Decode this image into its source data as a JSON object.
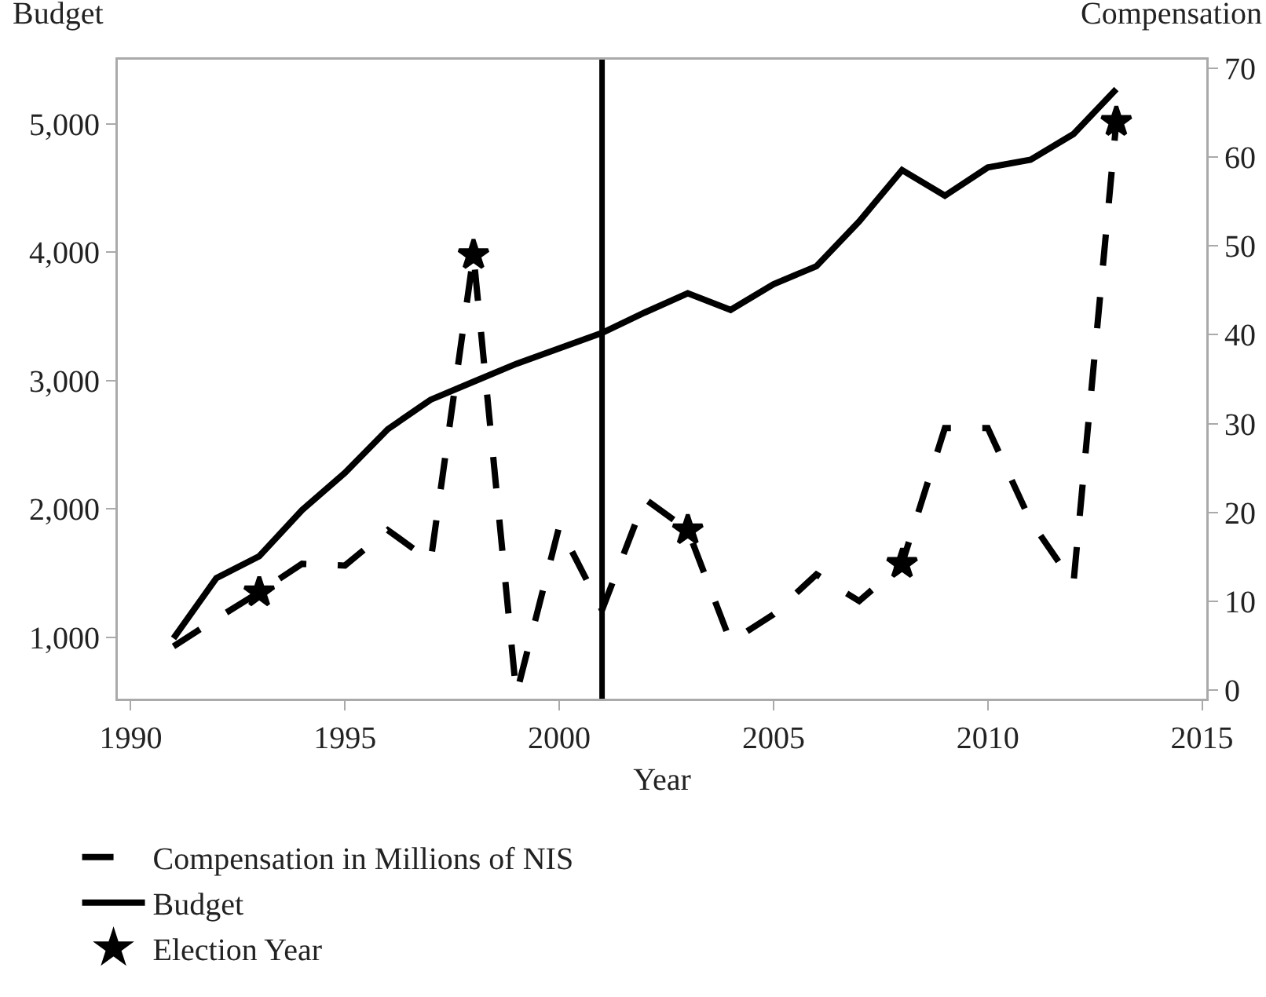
{
  "chart_data": {
    "type": "line",
    "xlabel": "Year",
    "ylabel": "Budget",
    "y2label": "Compensation",
    "x": [
      1991,
      1992,
      1993,
      1994,
      1995,
      1996,
      1997,
      1998,
      1999,
      2000,
      2001,
      2002,
      2003,
      2004,
      2005,
      2006,
      2007,
      2008,
      2009,
      2010,
      2011,
      2012,
      2013
    ],
    "series": [
      {
        "name": "Compensation in Millions of NIS",
        "color": "#000000",
        "axis": "y2",
        "line_style": "dashed",
        "values": [
          4.9,
          8,
          11,
          14.2,
          14,
          18,
          14.5,
          49,
          -0.5,
          18.4,
          9,
          21.5,
          18,
          5.4,
          8.5,
          13,
          10,
          14.2,
          29.5,
          29.5,
          19,
          12,
          64
        ]
      },
      {
        "name": "Budget",
        "color": "#000000",
        "axis": "y",
        "line_style": "solid",
        "values": [
          990,
          1460,
          1630,
          1990,
          2280,
          2620,
          2850,
          2990,
          3130,
          3250,
          3370,
          3530,
          3680,
          3550,
          3750,
          3890,
          4240,
          4640,
          4440,
          4660,
          4720,
          4920,
          5270
        ]
      },
      {
        "name": "Election Year",
        "type": "scatter",
        "marker": "star",
        "color": "#000000",
        "axis": "y2",
        "x": [
          1993,
          1998,
          2003,
          2008,
          2013
        ],
        "values": [
          11,
          49,
          18,
          14.2,
          64
        ]
      }
    ],
    "xlim": [
      1989.7,
      2015.1
    ],
    "xticks": [
      1990,
      1995,
      2000,
      2005,
      2010,
      2015
    ],
    "ylim": [
      520,
      5500
    ],
    "yticks": [
      {
        "value": 1000,
        "label": "1,000"
      },
      {
        "value": 2000,
        "label": "2,000"
      },
      {
        "value": 3000,
        "label": "3,000"
      },
      {
        "value": 4000,
        "label": "4,000"
      },
      {
        "value": 5000,
        "label": "5,000"
      }
    ],
    "y2lim": [
      -1,
      71
    ],
    "y2ticks": [
      0,
      10,
      20,
      30,
      40,
      50,
      60,
      70
    ],
    "ref_lines": [
      {
        "axis": "x",
        "value": 2001,
        "color": "#000000",
        "line_style": "solid"
      }
    ],
    "grid": false,
    "legend": "bottom"
  }
}
